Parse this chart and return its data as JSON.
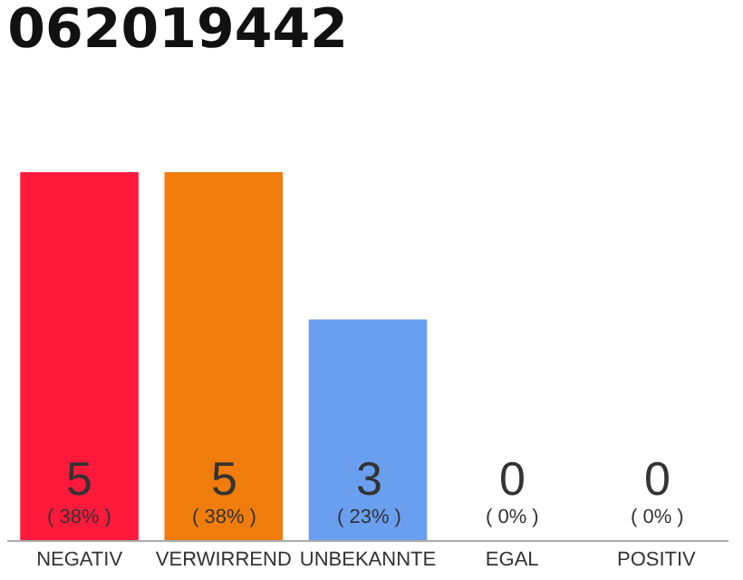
{
  "chart_data": {
    "type": "bar",
    "title": "062019442",
    "categories": [
      "NEGATIV",
      "VERWIRREND",
      "UNBEKANNTE",
      "EGAL",
      "POSITIV"
    ],
    "values": [
      5,
      5,
      3,
      0,
      0
    ],
    "colors": [
      "#ff1a3c",
      "#f07c0c",
      "#6a9ff0",
      "#d0d0d0",
      "#d0d0d0"
    ],
    "value_labels": [
      "5\n( 38% )",
      "5\n( 38% )",
      "3\n( 23% )",
      "0\n( 0% )",
      "0\n( 0% )"
    ],
    "legend": false
  }
}
